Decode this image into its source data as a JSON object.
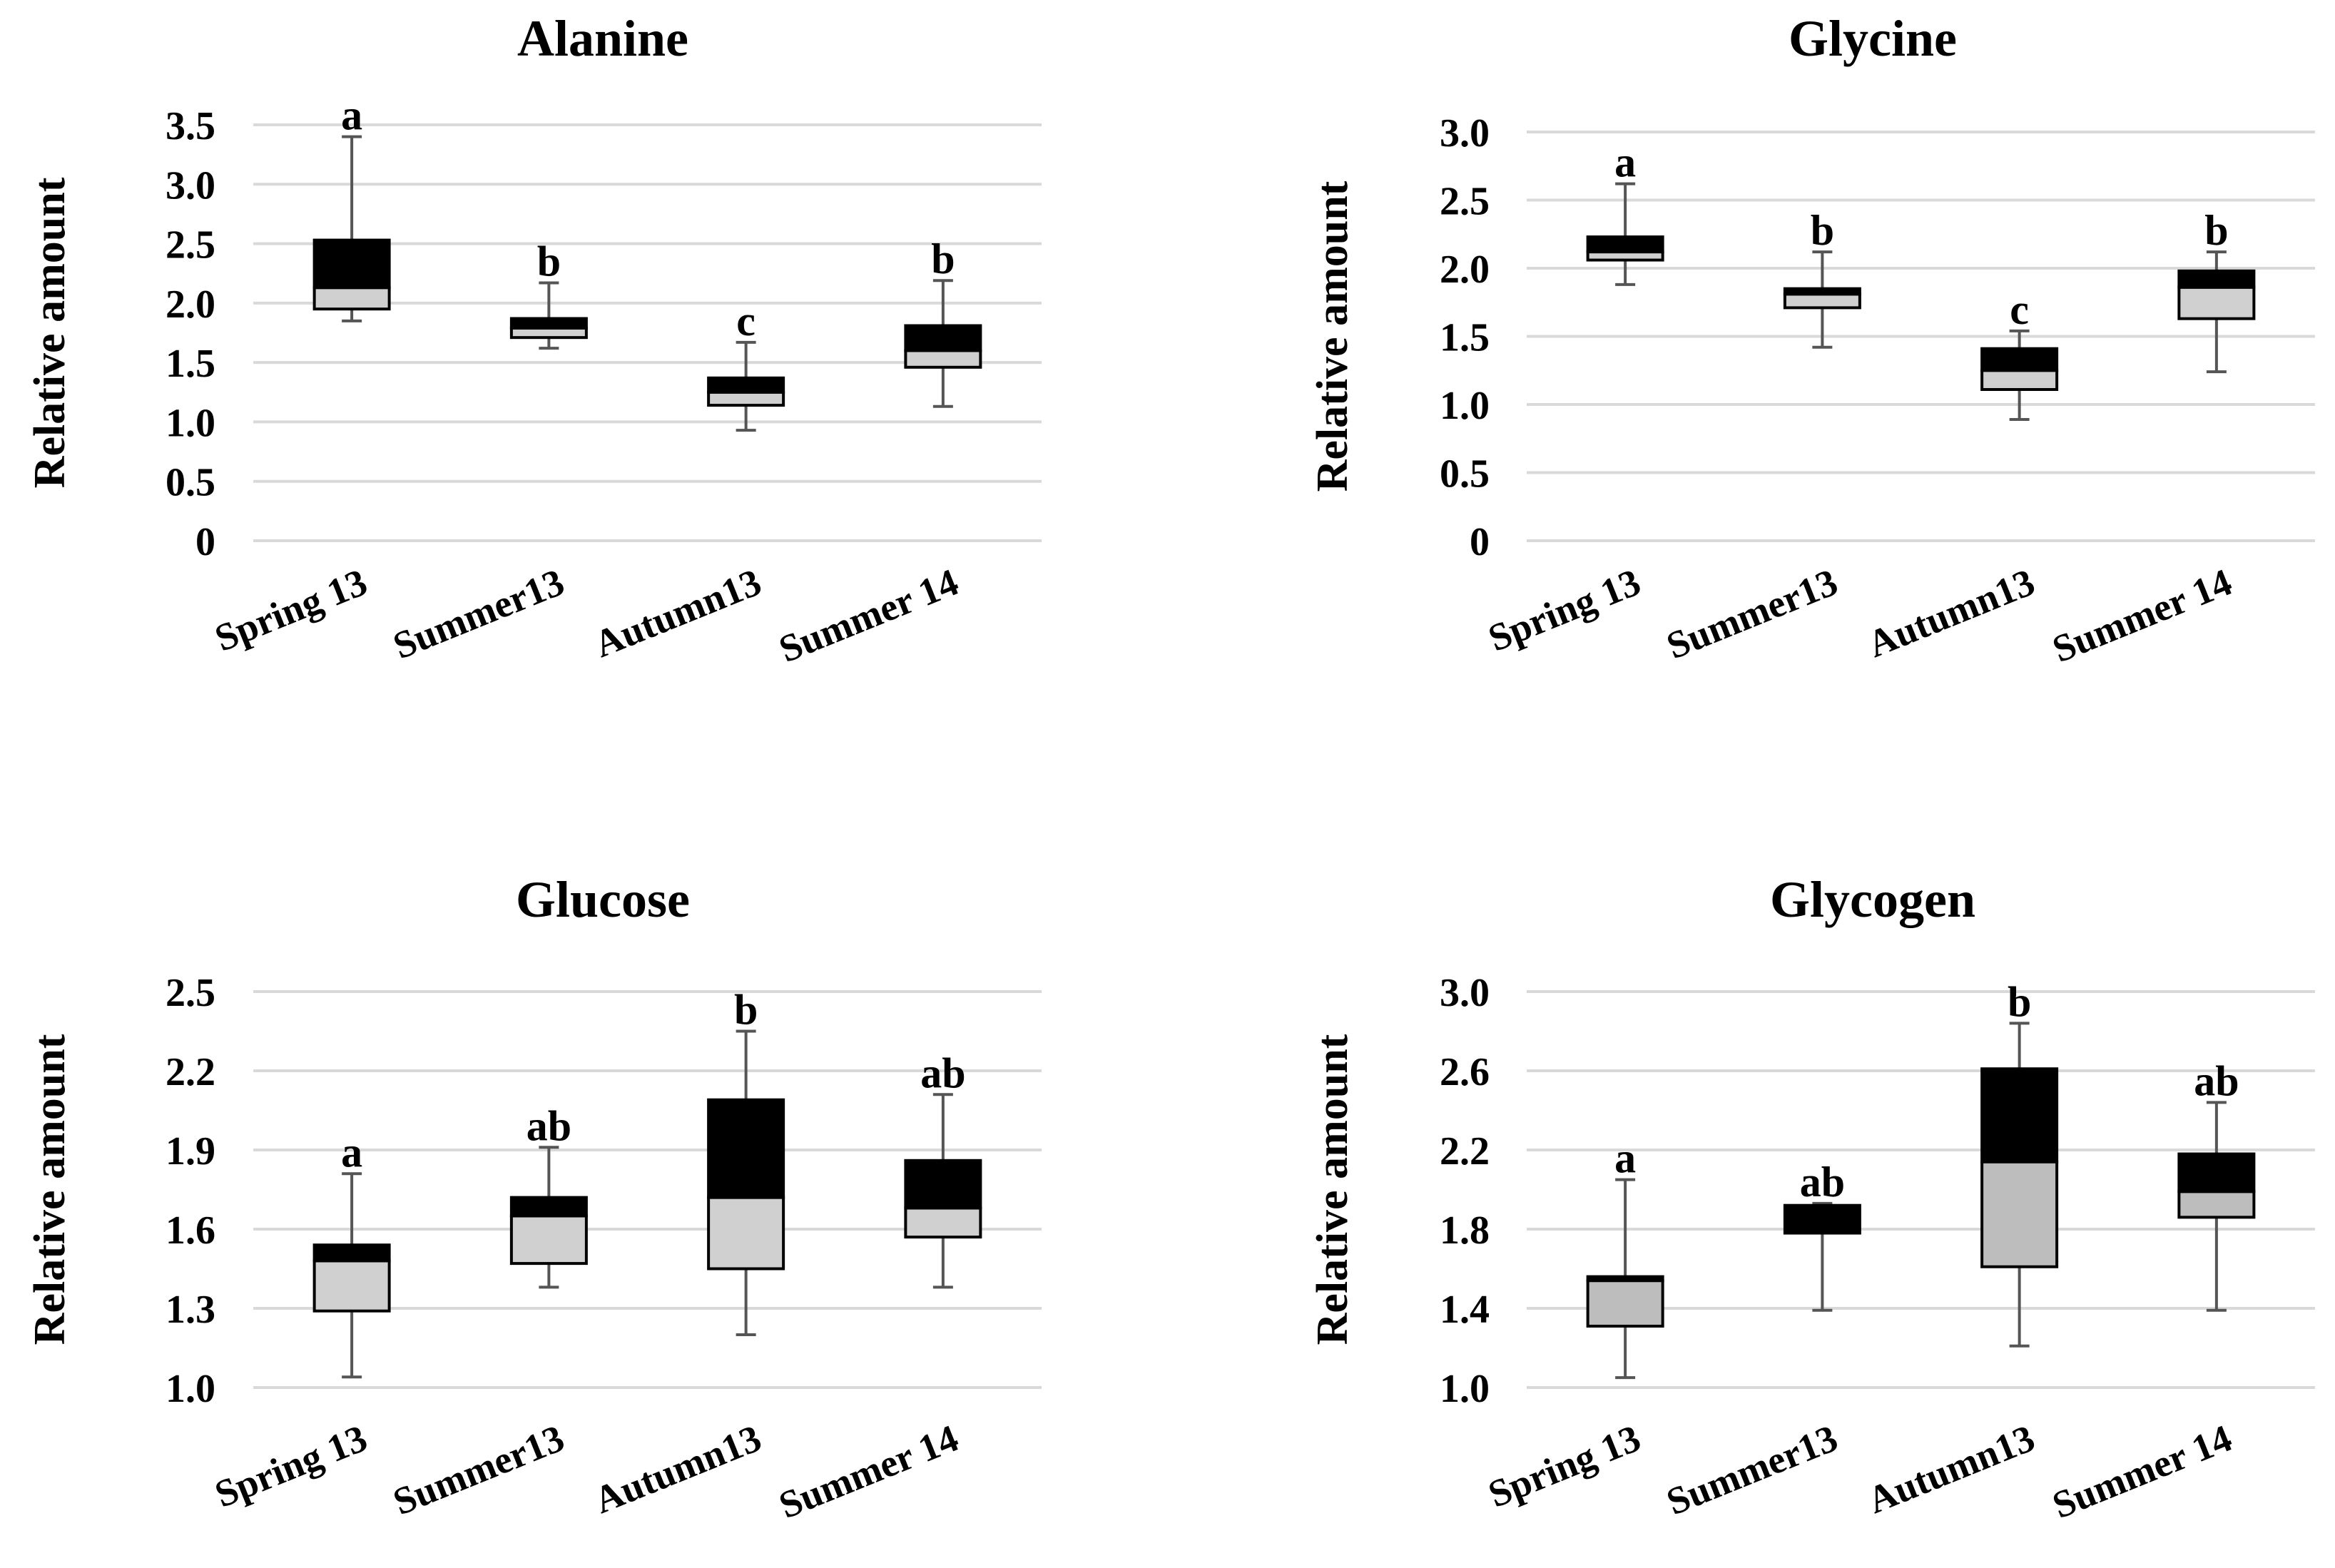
{
  "chart_data": [
    {
      "type": "box",
      "title": "Alanine",
      "ylabel": "Relative amount",
      "xlabel": "",
      "ylim": [
        0,
        3.5
      ],
      "yticks": [
        "0",
        "0.5",
        "1.0",
        "1.5",
        "2.0",
        "2.5",
        "3.0",
        "3.5"
      ],
      "ytick_values": [
        0,
        0.5,
        1.0,
        1.5,
        2.0,
        2.5,
        3.0,
        3.5
      ],
      "categories": [
        "Spring 13",
        "Summer13",
        "Autumn13",
        "Summer 14"
      ],
      "boxes": [
        {
          "min": 1.85,
          "q1": 1.95,
          "median": 2.13,
          "q3": 2.53,
          "max": 3.4,
          "label": "a"
        },
        {
          "min": 1.62,
          "q1": 1.71,
          "median": 1.79,
          "q3": 1.87,
          "max": 2.17,
          "label": "b"
        },
        {
          "min": 0.93,
          "q1": 1.14,
          "median": 1.25,
          "q3": 1.37,
          "max": 1.67,
          "label": "c"
        },
        {
          "min": 1.13,
          "q1": 1.46,
          "median": 1.6,
          "q3": 1.81,
          "max": 2.19,
          "label": "b"
        }
      ],
      "grid": true
    },
    {
      "type": "box",
      "title": "Glycine",
      "ylabel": "Relative amount",
      "xlabel": "",
      "ylim": [
        0,
        3.0
      ],
      "yticks": [
        "0",
        "0.5",
        "1.0",
        "1.5",
        "2.0",
        "2.5",
        "3.0"
      ],
      "ytick_values": [
        0,
        0.5,
        1.0,
        1.5,
        2.0,
        2.5,
        3.0
      ],
      "categories": [
        "Spring 13",
        "Summer13",
        "Autumn13",
        "Summer 14"
      ],
      "boxes": [
        {
          "min": 1.88,
          "q1": 2.06,
          "median": 2.12,
          "q3": 2.23,
          "max": 2.62,
          "label": "a"
        },
        {
          "min": 1.42,
          "q1": 1.71,
          "median": 1.81,
          "q3": 1.85,
          "max": 2.12,
          "label": "b"
        },
        {
          "min": 0.89,
          "q1": 1.11,
          "median": 1.25,
          "q3": 1.41,
          "max": 1.54,
          "label": "c"
        },
        {
          "min": 1.24,
          "q1": 1.63,
          "median": 1.86,
          "q3": 1.98,
          "max": 2.12,
          "label": "b"
        }
      ],
      "grid": true
    },
    {
      "type": "box",
      "title": "Glucose",
      "ylabel": "Relative amount",
      "xlabel": "",
      "ylim": [
        1.0,
        2.5
      ],
      "yticks": [
        "1.0",
        "1.3",
        "1.6",
        "1.9",
        "2.2",
        "2.5"
      ],
      "ytick_values": [
        1.0,
        1.3,
        1.6,
        1.9,
        2.2,
        2.5
      ],
      "categories": [
        "Spring 13",
        "Summer13",
        "Autumn13",
        "Summer 14"
      ],
      "boxes": [
        {
          "min": 1.04,
          "q1": 1.29,
          "median": 1.48,
          "q3": 1.54,
          "max": 1.81,
          "label": "a"
        },
        {
          "min": 1.38,
          "q1": 1.47,
          "median": 1.65,
          "q3": 1.72,
          "max": 1.91,
          "label": "ab"
        },
        {
          "min": 1.2,
          "q1": 1.45,
          "median": 1.72,
          "q3": 2.09,
          "max": 2.35,
          "label": "b"
        },
        {
          "min": 1.38,
          "q1": 1.57,
          "median": 1.68,
          "q3": 1.86,
          "max": 2.11,
          "label": "ab"
        }
      ],
      "grid": true
    },
    {
      "type": "box",
      "title": "Glycogen",
      "ylabel": "Relative amount",
      "xlabel": "",
      "ylim": [
        1.0,
        3.0
      ],
      "yticks": [
        "1.0",
        "1.4",
        "1.8",
        "2.2",
        "2.6",
        "3.0"
      ],
      "ytick_values": [
        1.0,
        1.4,
        1.8,
        2.2,
        2.6,
        3.0
      ],
      "categories": [
        "Spring 13",
        "Summer13",
        "Autumn13",
        "Summer 14"
      ],
      "boxes": [
        {
          "min": 1.05,
          "q1": 1.31,
          "median": 1.54,
          "q3": 1.56,
          "max": 2.05,
          "label": "a"
        },
        {
          "min": 1.39,
          "q1": 1.78,
          "median": 1.78,
          "q3": 1.92,
          "max": 1.93,
          "label": "ab"
        },
        {
          "min": 1.21,
          "q1": 1.61,
          "median": 2.14,
          "q3": 2.61,
          "max": 2.84,
          "label": "b"
        },
        {
          "min": 1.39,
          "q1": 1.86,
          "median": 1.99,
          "q3": 2.18,
          "max": 2.44,
          "label": "ab"
        }
      ],
      "grid": true
    }
  ]
}
